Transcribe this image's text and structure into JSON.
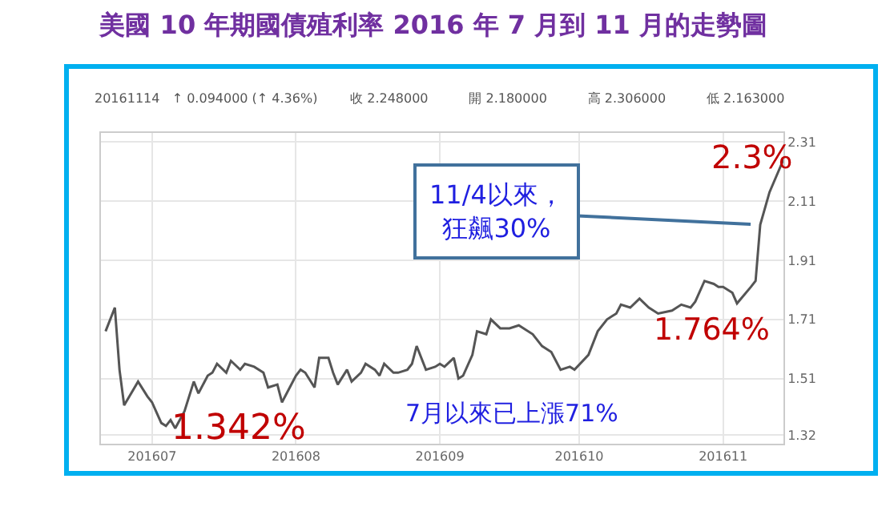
{
  "chart_data": {
    "type": "line",
    "title": "美國 10 年期國債殖利率 2016 年 7 月到 11 月的走勢圖",
    "x": [
      "2016-06-21",
      "2016-06-23",
      "2016-06-24",
      "2016-06-25",
      "2016-06-28",
      "2016-06-30",
      "2016-07-01",
      "2016-07-03",
      "2016-07-04",
      "2016-07-05",
      "2016-07-06",
      "2016-07-08",
      "2016-07-10",
      "2016-07-11",
      "2016-07-13",
      "2016-07-14",
      "2016-07-15",
      "2016-07-17",
      "2016-07-18",
      "2016-07-20",
      "2016-07-21",
      "2016-07-23",
      "2016-07-25",
      "2016-07-26",
      "2016-07-28",
      "2016-07-29",
      "2016-08-01",
      "2016-08-02",
      "2016-08-03",
      "2016-08-05",
      "2016-08-06",
      "2016-08-08",
      "2016-08-09",
      "2016-08-10",
      "2016-08-12",
      "2016-08-13",
      "2016-08-15",
      "2016-08-16",
      "2016-08-18",
      "2016-08-19",
      "2016-08-20",
      "2016-08-22",
      "2016-08-23",
      "2016-08-25",
      "2016-08-26",
      "2016-08-27",
      "2016-08-29",
      "2016-08-31",
      "2016-09-01",
      "2016-09-02",
      "2016-09-04",
      "2016-09-05",
      "2016-09-06",
      "2016-09-08",
      "2016-09-09",
      "2016-09-11",
      "2016-09-12",
      "2016-09-14",
      "2016-09-16",
      "2016-09-18",
      "2016-09-21",
      "2016-09-23",
      "2016-09-25",
      "2016-09-27",
      "2016-09-29",
      "2016-09-30",
      "2016-10-03",
      "2016-10-05",
      "2016-10-07",
      "2016-10-09",
      "2016-10-10",
      "2016-10-12",
      "2016-10-14",
      "2016-10-16",
      "2016-10-18",
      "2016-10-21",
      "2016-10-23",
      "2016-10-25",
      "2016-10-26",
      "2016-10-28",
      "2016-10-30",
      "2016-10-31",
      "2016-11-01",
      "2016-11-03",
      "2016-11-04",
      "2016-11-07",
      "2016-11-08",
      "2016-11-09",
      "2016-11-11",
      "2016-11-14"
    ],
    "values": [
      1.67,
      1.75,
      1.54,
      1.42,
      1.5,
      1.45,
      1.43,
      1.36,
      1.35,
      1.37,
      1.342,
      1.4,
      1.5,
      1.46,
      1.52,
      1.53,
      1.56,
      1.53,
      1.57,
      1.54,
      1.56,
      1.55,
      1.53,
      1.48,
      1.49,
      1.43,
      1.52,
      1.54,
      1.53,
      1.48,
      1.58,
      1.58,
      1.53,
      1.49,
      1.54,
      1.5,
      1.53,
      1.56,
      1.54,
      1.52,
      1.56,
      1.53,
      1.53,
      1.54,
      1.56,
      1.62,
      1.54,
      1.55,
      1.56,
      1.55,
      1.58,
      1.51,
      1.52,
      1.59,
      1.67,
      1.66,
      1.71,
      1.68,
      1.68,
      1.69,
      1.66,
      1.62,
      1.6,
      1.54,
      1.55,
      1.54,
      1.59,
      1.67,
      1.71,
      1.73,
      1.76,
      1.75,
      1.78,
      1.75,
      1.73,
      1.74,
      1.76,
      1.75,
      1.77,
      1.84,
      1.83,
      1.82,
      1.82,
      1.8,
      1.764,
      1.82,
      1.84,
      2.03,
      2.14,
      2.25
    ],
    "color": "#555555",
    "marker": "none",
    "line_style": "solid",
    "xlim": [
      "2016-06-20",
      "2016-11-14"
    ],
    "xticks": [
      {
        "value": "2016-07-01",
        "label": "201607"
      },
      {
        "value": "2016-08-01",
        "label": "201608"
      },
      {
        "value": "2016-09-01",
        "label": "201609"
      },
      {
        "value": "2016-10-01",
        "label": "201610"
      },
      {
        "value": "2016-11-01",
        "label": "201611"
      }
    ],
    "ylim": [
      1.29,
      2.34
    ],
    "yticks": [
      1.32,
      1.51,
      1.71,
      1.91,
      2.11,
      2.31
    ],
    "grid": true,
    "annotations": [
      "20161114   ↑ 0.094000 (↑ 4.36%)        收 2.248000          開 2.180000          高 2.306000          低 2.163000",
      {
        "text": "1.342%",
        "x": "2016-07-06",
        "y": 1.342
      },
      {
        "text": "1.764%",
        "x": "2016-11-04",
        "y": 1.764
      },
      {
        "text": "2.3%",
        "x": "2016-11-14",
        "y": 2.25
      },
      {
        "text": "11/4以來，狂飆30%",
        "x": "2016-11-09",
        "y": 2.03
      },
      "7月以來已上漲71%"
    ]
  }
}
